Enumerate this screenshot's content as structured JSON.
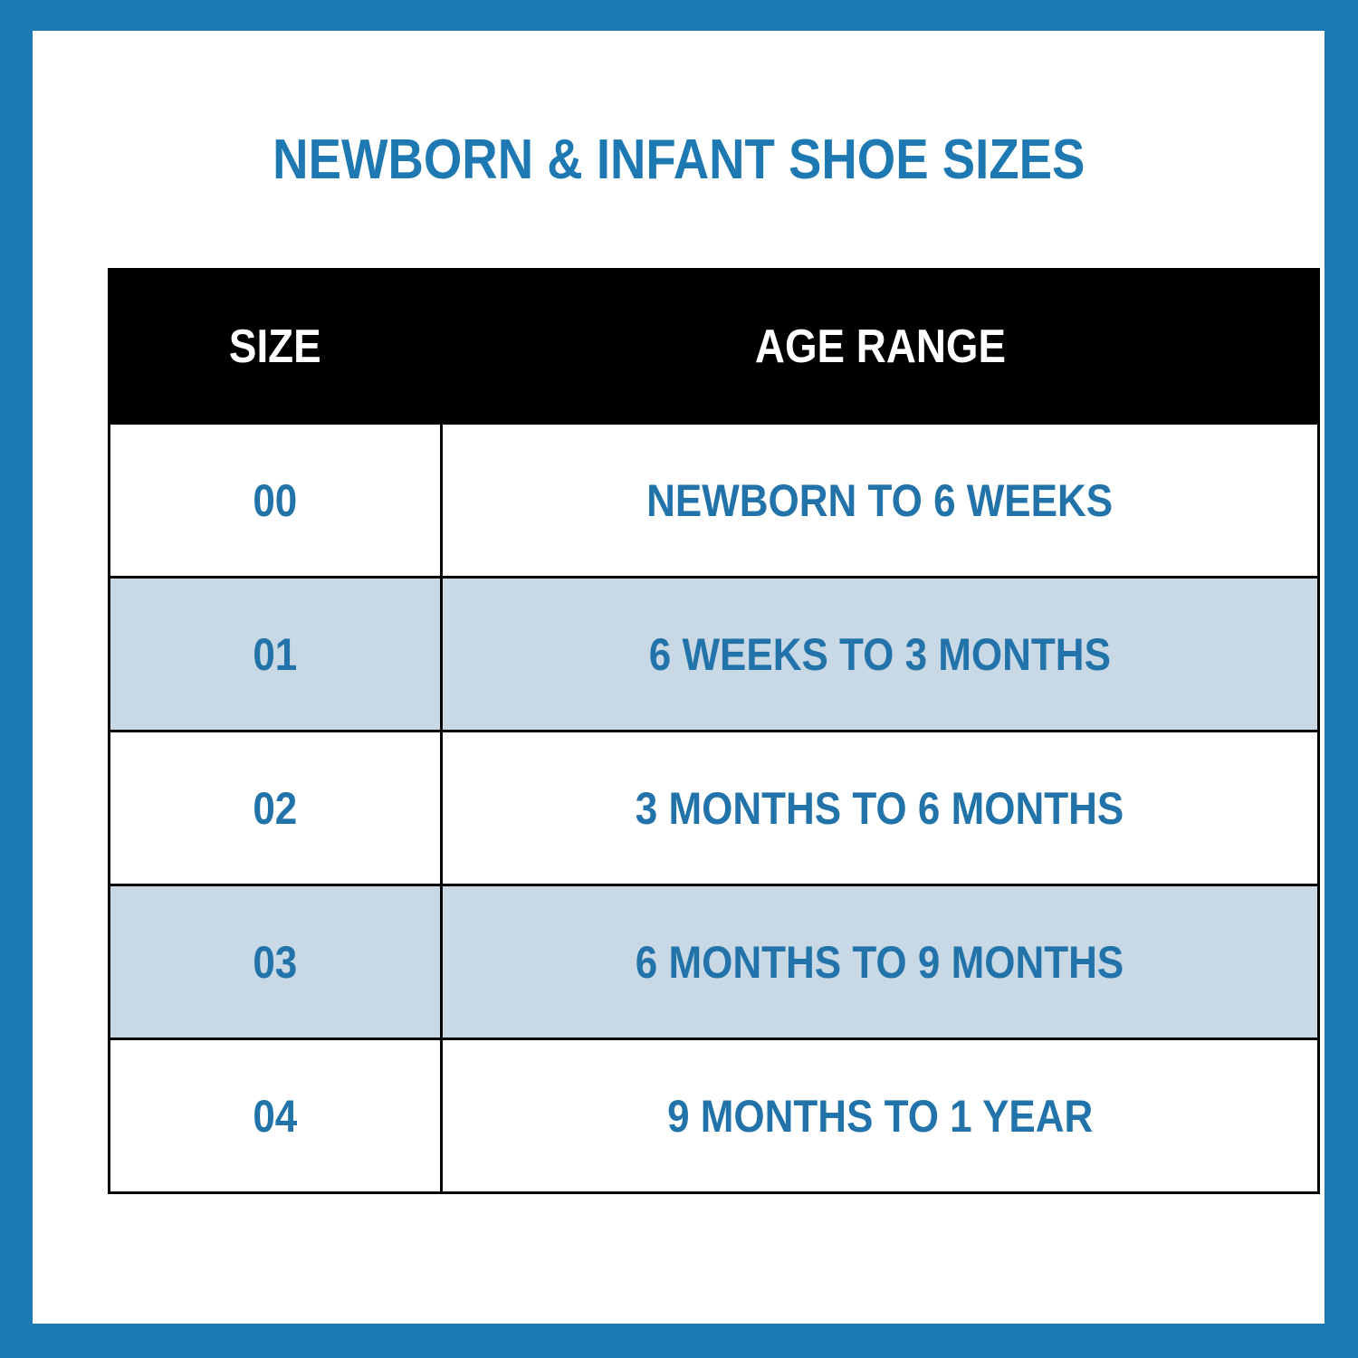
{
  "title": "NEWBORN & INFANT SHOE SIZES",
  "colors": {
    "frame_blue": "#1b7ab1",
    "title_blue": "#1e79b3",
    "cell_text_blue": "#2173a9",
    "alt_row_blue": "#c9d8e5",
    "header_bg": "#000000",
    "header_text": "#ffffff"
  },
  "chart_data": {
    "type": "table",
    "title": "NEWBORN & INFANT SHOE SIZES",
    "columns": [
      "SIZE",
      "AGE RANGE"
    ],
    "rows": [
      [
        "00",
        "NEWBORN TO 6 WEEKS"
      ],
      [
        "01",
        "6 WEEKS TO 3 MONTHS"
      ],
      [
        "02",
        "3 MONTHS TO 6 MONTHS"
      ],
      [
        "03",
        "6 MONTHS TO 9 MONTHS"
      ],
      [
        "04",
        "9 MONTHS TO 1 YEAR"
      ]
    ],
    "layout": {
      "header_style": "black band, white text",
      "row_striping": "white / light blue alternating",
      "grid": "thin black rules",
      "frame": "solid blue page border"
    }
  }
}
